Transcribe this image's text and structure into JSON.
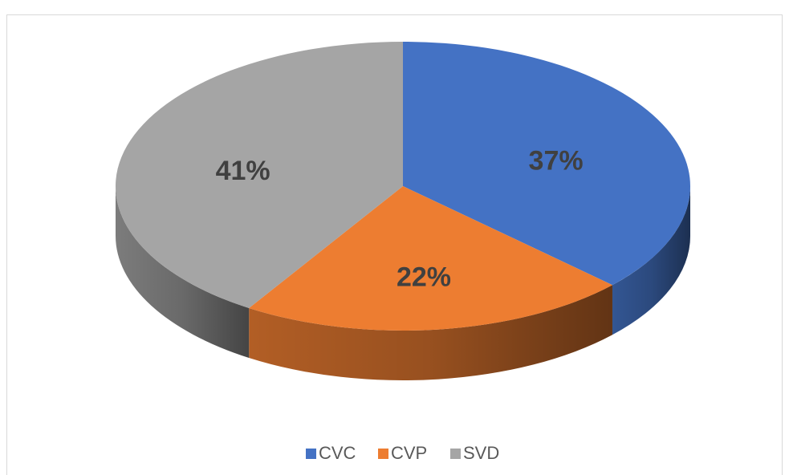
{
  "chart_data": {
    "type": "pie3d",
    "categories": [
      "CVC",
      "CVP",
      "SVD"
    ],
    "values": [
      37,
      22,
      41
    ],
    "value_labels": [
      "37%",
      "22%",
      "41%"
    ],
    "colors": [
      "#4472c4",
      "#ed7d31",
      "#a5a5a5"
    ],
    "legend": "bottom"
  }
}
